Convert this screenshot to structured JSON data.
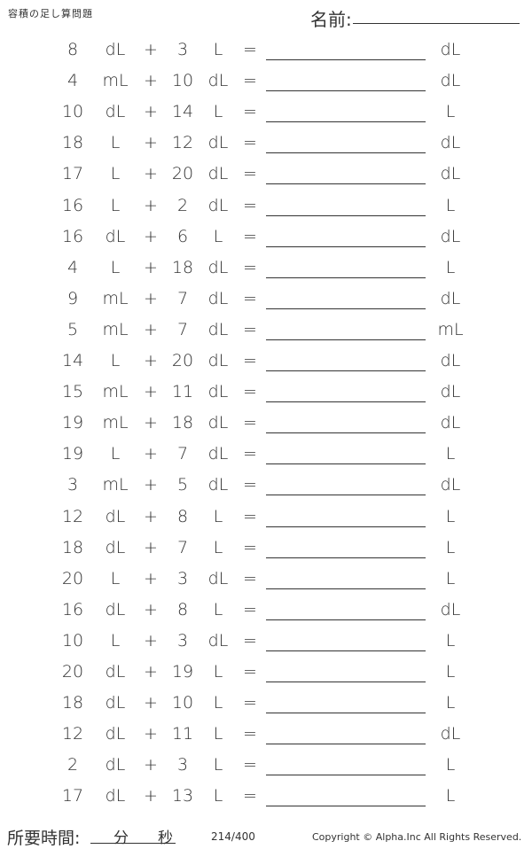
{
  "header": {
    "title": "容積の足し算問題",
    "name_label": "名前:"
  },
  "problems": [
    {
      "a": "8",
      "ua": "dL",
      "b": "3",
      "ub": "L",
      "ans_unit": "dL"
    },
    {
      "a": "4",
      "ua": "mL",
      "b": "10",
      "ub": "dL",
      "ans_unit": "dL"
    },
    {
      "a": "10",
      "ua": "dL",
      "b": "14",
      "ub": "L",
      "ans_unit": "L"
    },
    {
      "a": "18",
      "ua": "L",
      "b": "12",
      "ub": "dL",
      "ans_unit": "dL"
    },
    {
      "a": "17",
      "ua": "L",
      "b": "20",
      "ub": "dL",
      "ans_unit": "dL"
    },
    {
      "a": "16",
      "ua": "L",
      "b": "2",
      "ub": "dL",
      "ans_unit": "L"
    },
    {
      "a": "16",
      "ua": "dL",
      "b": "6",
      "ub": "L",
      "ans_unit": "dL"
    },
    {
      "a": "4",
      "ua": "L",
      "b": "18",
      "ub": "dL",
      "ans_unit": "L"
    },
    {
      "a": "9",
      "ua": "mL",
      "b": "7",
      "ub": "dL",
      "ans_unit": "dL"
    },
    {
      "a": "5",
      "ua": "mL",
      "b": "7",
      "ub": "dL",
      "ans_unit": "mL"
    },
    {
      "a": "14",
      "ua": "L",
      "b": "20",
      "ub": "dL",
      "ans_unit": "dL"
    },
    {
      "a": "15",
      "ua": "mL",
      "b": "11",
      "ub": "dL",
      "ans_unit": "dL"
    },
    {
      "a": "19",
      "ua": "mL",
      "b": "18",
      "ub": "dL",
      "ans_unit": "dL"
    },
    {
      "a": "19",
      "ua": "L",
      "b": "7",
      "ub": "dL",
      "ans_unit": "L"
    },
    {
      "a": "3",
      "ua": "mL",
      "b": "5",
      "ub": "dL",
      "ans_unit": "dL"
    },
    {
      "a": "12",
      "ua": "dL",
      "b": "8",
      "ub": "L",
      "ans_unit": "L"
    },
    {
      "a": "18",
      "ua": "dL",
      "b": "7",
      "ub": "L",
      "ans_unit": "L"
    },
    {
      "a": "20",
      "ua": "L",
      "b": "3",
      "ub": "dL",
      "ans_unit": "L"
    },
    {
      "a": "16",
      "ua": "dL",
      "b": "8",
      "ub": "L",
      "ans_unit": "dL"
    },
    {
      "a": "10",
      "ua": "L",
      "b": "3",
      "ub": "dL",
      "ans_unit": "L"
    },
    {
      "a": "20",
      "ua": "dL",
      "b": "19",
      "ub": "L",
      "ans_unit": "L"
    },
    {
      "a": "18",
      "ua": "dL",
      "b": "10",
      "ub": "L",
      "ans_unit": "L"
    },
    {
      "a": "12",
      "ua": "dL",
      "b": "11",
      "ub": "L",
      "ans_unit": "dL"
    },
    {
      "a": "2",
      "ua": "dL",
      "b": "3",
      "ub": "L",
      "ans_unit": "L"
    },
    {
      "a": "17",
      "ua": "dL",
      "b": "13",
      "ub": "L",
      "ans_unit": "L"
    }
  ],
  "symbols": {
    "plus": "+",
    "equals": "="
  },
  "footer": {
    "time_label": "所要時間:",
    "minutes": "分",
    "seconds": "秒",
    "page": "214/400",
    "copyright": "Copyright © Alpha.Inc All Rights Reserved."
  }
}
